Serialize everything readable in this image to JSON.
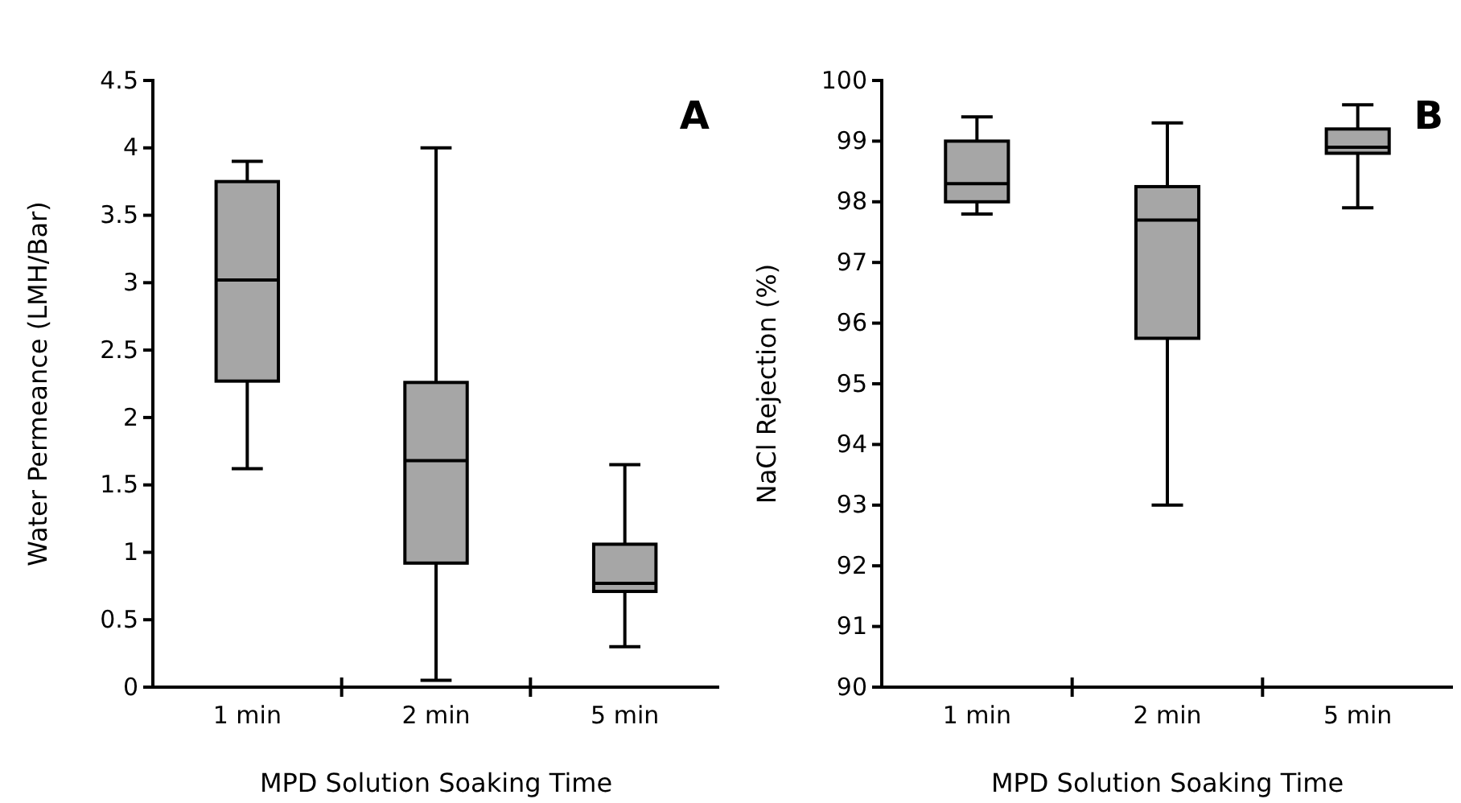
{
  "chart_data": [
    {
      "type": "box",
      "categories": [
        "1 min",
        "2 min",
        "5 min"
      ],
      "xlabel": "MPD Solution Soaking Time",
      "ylabel": "Water Permeance (LMH/Bar)",
      "annotations": [
        "A"
      ],
      "ylim": [
        0,
        4.5
      ],
      "yticks": [
        0,
        0.5,
        1,
        1.5,
        2,
        2.5,
        3,
        3.5,
        4,
        4.5
      ],
      "grid": false,
      "series": [
        {
          "color": "#a6a6a6",
          "boxes": [
            {
              "low": 1.62,
              "q1": 2.27,
              "median": 3.02,
              "q3": 3.75,
              "high": 3.9
            },
            {
              "low": 0.05,
              "q1": 0.92,
              "median": 1.68,
              "q3": 2.26,
              "high": 4.0
            },
            {
              "low": 0.3,
              "q1": 0.71,
              "median": 0.77,
              "q3": 1.06,
              "high": 1.65
            }
          ]
        }
      ]
    },
    {
      "type": "box",
      "categories": [
        "1 min",
        "2 min",
        "5 min"
      ],
      "xlabel": "MPD Solution Soaking Time",
      "ylabel": "NaCl Rejection (%)",
      "annotations": [
        "B"
      ],
      "ylim": [
        90,
        100
      ],
      "yticks": [
        90,
        91,
        92,
        93,
        94,
        95,
        96,
        97,
        98,
        99,
        100
      ],
      "grid": false,
      "series": [
        {
          "color": "#a6a6a6",
          "boxes": [
            {
              "low": 97.8,
              "q1": 98.0,
              "median": 98.3,
              "q3": 99.0,
              "high": 99.4
            },
            {
              "low": 93.0,
              "q1": 95.75,
              "median": 97.7,
              "q3": 98.25,
              "high": 99.3
            },
            {
              "low": 97.9,
              "q1": 98.8,
              "median": 98.9,
              "q3": 99.2,
              "high": 99.6
            }
          ]
        }
      ]
    }
  ]
}
